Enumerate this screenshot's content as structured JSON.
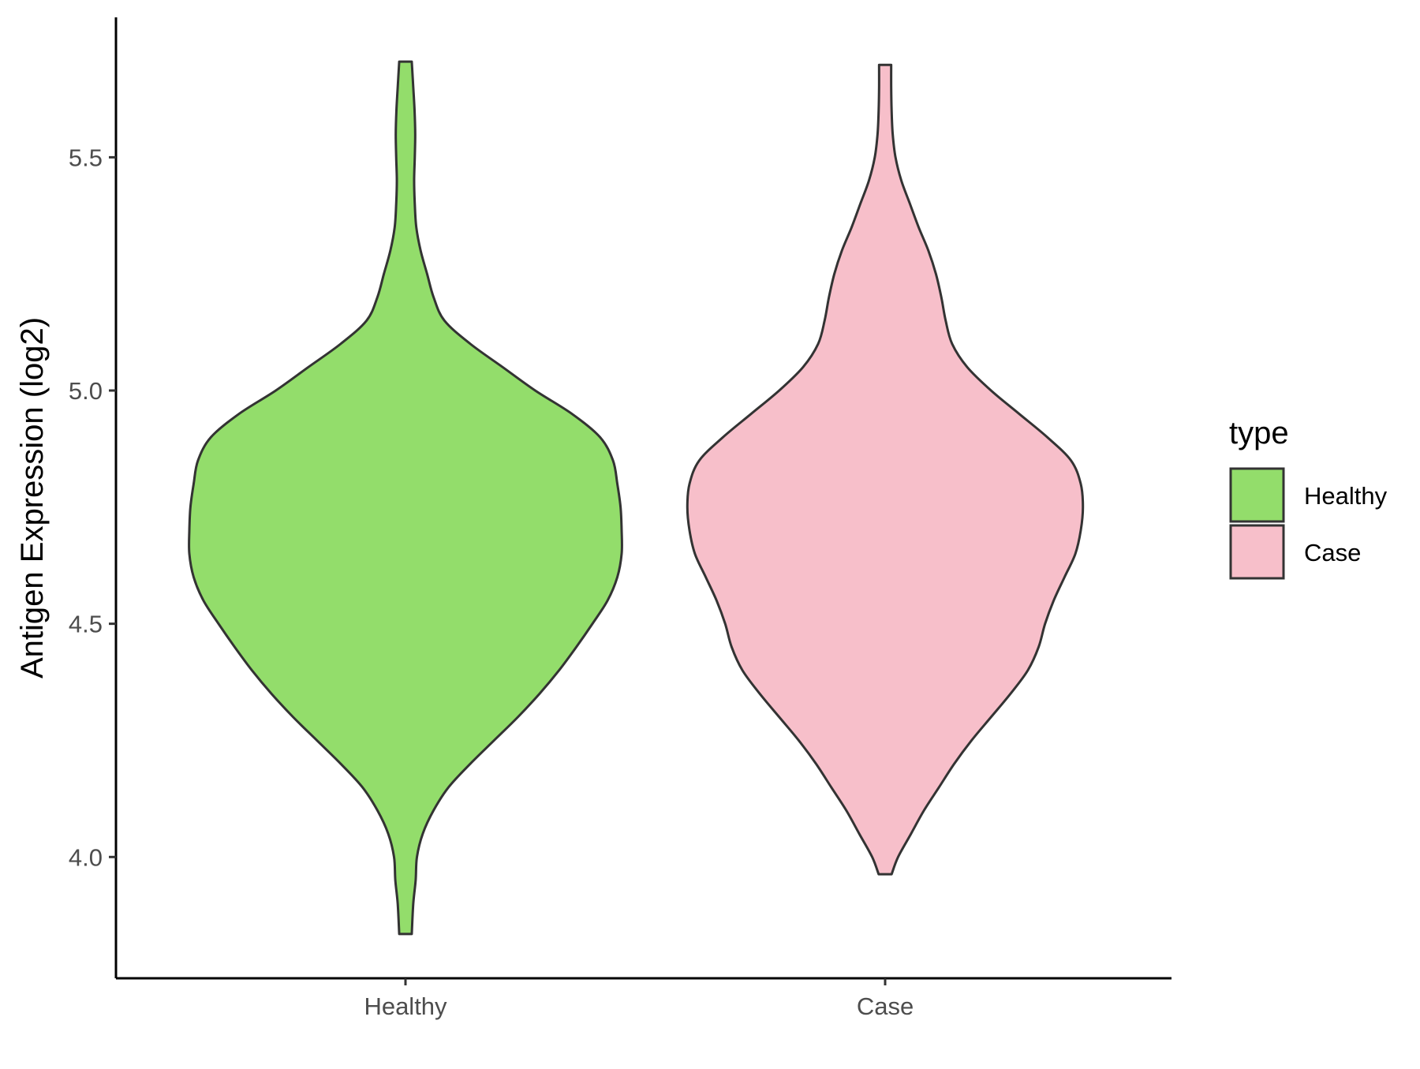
{
  "chart_data": {
    "type": "violin",
    "ylabel": "Antigen Expression (log2)",
    "xlabel": "",
    "categories": [
      "Healthy",
      "Case"
    ],
    "y_ticks": [
      {
        "value": 4.0,
        "label": "4.0"
      },
      {
        "value": 4.5,
        "label": "4.5"
      },
      {
        "value": 5.0,
        "label": "5.0"
      },
      {
        "value": 5.5,
        "label": "5.5"
      }
    ],
    "ylim": [
      3.74,
      5.8
    ],
    "grid": false,
    "legend": {
      "title": "type",
      "placement": "right",
      "items": [
        {
          "label": "Healthy",
          "color": "#93dd6b"
        },
        {
          "label": "Case",
          "color": "#f7bfca"
        }
      ]
    },
    "series": [
      {
        "name": "Healthy",
        "category": "Healthy",
        "color": "#93dd6b",
        "y_min": 3.835,
        "y_max": 5.705,
        "density_profile": [
          {
            "y": 3.835,
            "w": 0.029
          },
          {
            "y": 3.9,
            "w": 0.036
          },
          {
            "y": 3.95,
            "w": 0.047
          },
          {
            "y": 4.0,
            "w": 0.053
          },
          {
            "y": 4.05,
            "w": 0.08
          },
          {
            "y": 4.1,
            "w": 0.13
          },
          {
            "y": 4.15,
            "w": 0.2
          },
          {
            "y": 4.2,
            "w": 0.3
          },
          {
            "y": 4.25,
            "w": 0.41
          },
          {
            "y": 4.3,
            "w": 0.52
          },
          {
            "y": 4.35,
            "w": 0.62
          },
          {
            "y": 4.4,
            "w": 0.71
          },
          {
            "y": 4.45,
            "w": 0.79
          },
          {
            "y": 4.5,
            "w": 0.865
          },
          {
            "y": 4.55,
            "w": 0.935
          },
          {
            "y": 4.6,
            "w": 0.98
          },
          {
            "y": 4.65,
            "w": 1.0
          },
          {
            "y": 4.7,
            "w": 1.0
          },
          {
            "y": 4.75,
            "w": 0.995
          },
          {
            "y": 4.8,
            "w": 0.98
          },
          {
            "y": 4.85,
            "w": 0.96
          },
          {
            "y": 4.9,
            "w": 0.9
          },
          {
            "y": 4.95,
            "w": 0.77
          },
          {
            "y": 5.0,
            "w": 0.6
          },
          {
            "y": 5.05,
            "w": 0.45
          },
          {
            "y": 5.1,
            "w": 0.3
          },
          {
            "y": 5.15,
            "w": 0.18
          },
          {
            "y": 5.2,
            "w": 0.13
          },
          {
            "y": 5.25,
            "w": 0.1
          },
          {
            "y": 5.3,
            "w": 0.07
          },
          {
            "y": 5.35,
            "w": 0.05
          },
          {
            "y": 5.4,
            "w": 0.043
          },
          {
            "y": 5.45,
            "w": 0.04
          },
          {
            "y": 5.5,
            "w": 0.043
          },
          {
            "y": 5.55,
            "w": 0.045
          },
          {
            "y": 5.6,
            "w": 0.042
          },
          {
            "y": 5.65,
            "w": 0.036
          },
          {
            "y": 5.705,
            "w": 0.029
          }
        ]
      },
      {
        "name": "Case",
        "category": "Case",
        "color": "#f7bfca",
        "y_min": 3.963,
        "y_max": 5.698,
        "density_profile": [
          {
            "y": 3.963,
            "w": 0.03
          },
          {
            "y": 4.0,
            "w": 0.06
          },
          {
            "y": 4.05,
            "w": 0.12
          },
          {
            "y": 4.1,
            "w": 0.18
          },
          {
            "y": 4.15,
            "w": 0.25
          },
          {
            "y": 4.2,
            "w": 0.32
          },
          {
            "y": 4.25,
            "w": 0.4
          },
          {
            "y": 4.3,
            "w": 0.49
          },
          {
            "y": 4.35,
            "w": 0.58
          },
          {
            "y": 4.4,
            "w": 0.66
          },
          {
            "y": 4.45,
            "w": 0.71
          },
          {
            "y": 4.5,
            "w": 0.74
          },
          {
            "y": 4.55,
            "w": 0.78
          },
          {
            "y": 4.6,
            "w": 0.83
          },
          {
            "y": 4.65,
            "w": 0.88
          },
          {
            "y": 4.7,
            "w": 0.905
          },
          {
            "y": 4.75,
            "w": 0.915
          },
          {
            "y": 4.8,
            "w": 0.905
          },
          {
            "y": 4.85,
            "w": 0.86
          },
          {
            "y": 4.9,
            "w": 0.75
          },
          {
            "y": 4.95,
            "w": 0.62
          },
          {
            "y": 5.0,
            "w": 0.49
          },
          {
            "y": 5.05,
            "w": 0.38
          },
          {
            "y": 5.1,
            "w": 0.31
          },
          {
            "y": 5.15,
            "w": 0.28
          },
          {
            "y": 5.2,
            "w": 0.26
          },
          {
            "y": 5.25,
            "w": 0.235
          },
          {
            "y": 5.3,
            "w": 0.2
          },
          {
            "y": 5.35,
            "w": 0.155
          },
          {
            "y": 5.4,
            "w": 0.115
          },
          {
            "y": 5.45,
            "w": 0.075
          },
          {
            "y": 5.5,
            "w": 0.048
          },
          {
            "y": 5.55,
            "w": 0.035
          },
          {
            "y": 5.6,
            "w": 0.03
          },
          {
            "y": 5.65,
            "w": 0.028
          },
          {
            "y": 5.698,
            "w": 0.028
          }
        ]
      }
    ]
  }
}
